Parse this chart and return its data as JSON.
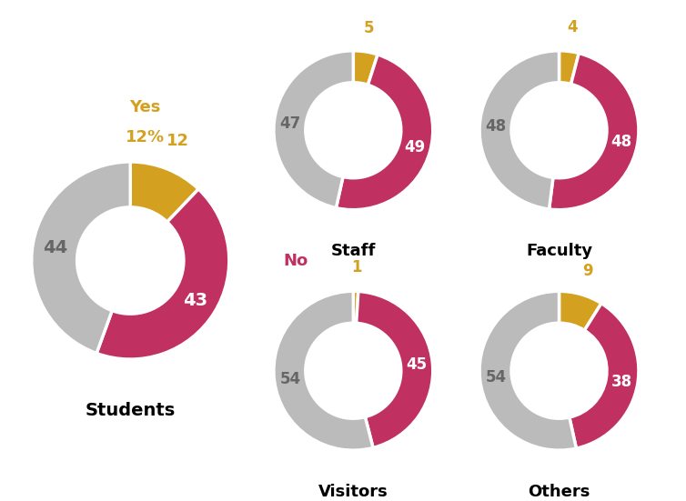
{
  "groups": [
    {
      "name": "Students",
      "yes": 12,
      "no": 43,
      "dont_know": 44,
      "yes_label": "12%"
    },
    {
      "name": "Staff",
      "yes": 5,
      "no": 49,
      "dont_know": 47,
      "yes_label": null
    },
    {
      "name": "Faculty",
      "yes": 4,
      "no": 48,
      "dont_know": 48,
      "yes_label": null
    },
    {
      "name": "Visitors",
      "yes": 1,
      "no": 45,
      "dont_know": 54,
      "yes_label": null
    },
    {
      "name": "Others",
      "yes": 9,
      "no": 38,
      "dont_know": 54,
      "yes_label": null
    }
  ],
  "color_yes": "#D4A020",
  "color_no": "#C03060",
  "color_dont_know": "#BBBBBB",
  "background": "#FFFFFF"
}
